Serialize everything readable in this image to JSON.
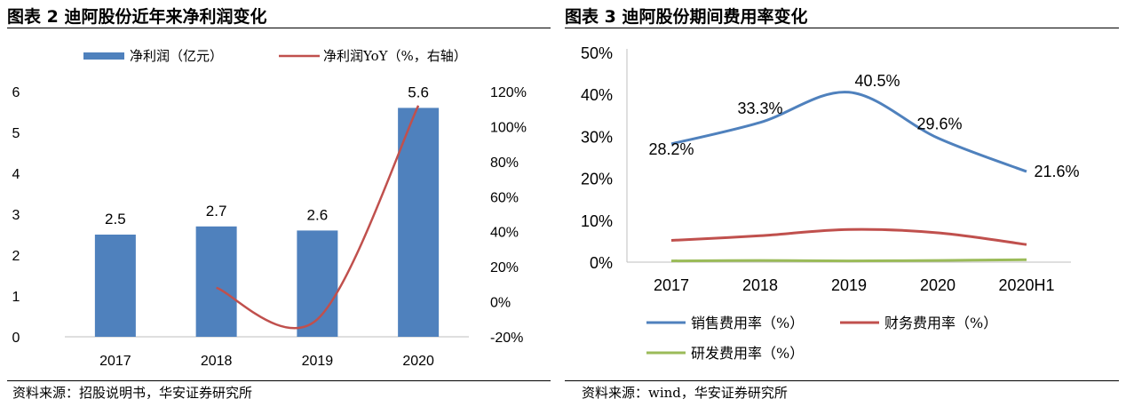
{
  "left": {
    "title": "图表 2 迪阿股份近年来净利润变化",
    "source": "资料来源：招股说明书，华安证券研究所"
  },
  "right": {
    "title": "图表 3 迪阿股份期间费用率变化",
    "source": "资料来源：wind，华安证券研究所"
  },
  "colors": {
    "bar": "#4f81bd",
    "yoy_line": "#c0504d",
    "sales": "#4f81bd",
    "finance": "#c0504d",
    "rnd": "#9bbb59",
    "axis": "#bfbfbf",
    "rule": "#000000"
  },
  "chart_data": [
    {
      "type": "bar",
      "title": "图表 2 迪阿股份近年来净利润变化",
      "categories": [
        "2017",
        "2018",
        "2019",
        "2020"
      ],
      "series": [
        {
          "name": "净利润（亿元）",
          "type": "bar",
          "axis": "left",
          "values": [
            2.5,
            2.7,
            2.6,
            5.6
          ],
          "labels": [
            "2.5",
            "2.7",
            "2.6",
            "5.6"
          ]
        },
        {
          "name": "净利润YoY（%，右轴）",
          "type": "line",
          "axis": "right",
          "values": [
            null,
            8,
            -10,
            112
          ]
        }
      ],
      "ylim": [
        0,
        6
      ],
      "yticks": [
        "0",
        "1",
        "2",
        "3",
        "4",
        "5",
        "6"
      ],
      "y2lim": [
        -20,
        120
      ],
      "y2ticks": [
        "-20%",
        "0%",
        "20%",
        "40%",
        "60%",
        "80%",
        "100%",
        "120%"
      ],
      "legend": "top",
      "grid": false
    },
    {
      "type": "line",
      "title": "图表 3 迪阿股份期间费用率变化",
      "categories": [
        "2017",
        "2018",
        "2019",
        "2020",
        "2020H1"
      ],
      "series": [
        {
          "name": "销售费用率（%）",
          "values": [
            28.2,
            33.3,
            40.5,
            29.6,
            21.6
          ],
          "labels": [
            "28.2%",
            "33.3%",
            "40.5%",
            "29.6%",
            "21.6%"
          ]
        },
        {
          "name": "财务费用率（%）",
          "values": [
            5.2,
            6.3,
            7.8,
            7.0,
            4.2
          ]
        },
        {
          "name": "研发费用率（%）",
          "values": [
            0.3,
            0.4,
            0.3,
            0.4,
            0.6
          ]
        }
      ],
      "ylim": [
        0,
        50
      ],
      "yticks": [
        "0%",
        "10%",
        "20%",
        "30%",
        "40%",
        "50%"
      ],
      "legend": "bottom",
      "grid": false
    }
  ]
}
